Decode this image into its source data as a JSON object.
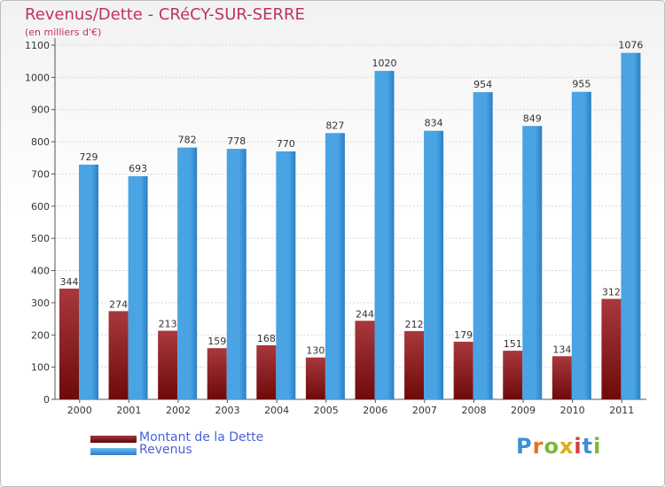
{
  "title": "Revenus/Dette - CRéCY-SUR-SERRE",
  "subtitle": "(en milliers d'€)",
  "colors": {
    "dette": "#6e0a0a",
    "dette_light": "#a8383d",
    "revenus": "#4aa3e2",
    "revenus_dark": "#2a7fc6",
    "grid": "#d8d8d8",
    "text": "#333333",
    "accent": "#c0335f",
    "legend_text": "#4a62d8"
  },
  "chart_data": {
    "type": "bar",
    "title": "Revenus/Dette - CRéCY-SUR-SERRE",
    "xlabel": "",
    "ylabel": "(en milliers d'€)",
    "ylim": [
      0,
      1100
    ],
    "yticks": [
      0,
      100,
      200,
      300,
      400,
      500,
      600,
      700,
      800,
      900,
      1000,
      1100
    ],
    "grid": true,
    "categories": [
      "2000",
      "2001",
      "2002",
      "2003",
      "2004",
      "2005",
      "2006",
      "2007",
      "2008",
      "2009",
      "2010",
      "2011"
    ],
    "series": [
      {
        "name": "Montant de la Dette",
        "values": [
          344,
          274,
          213,
          159,
          168,
          130,
          244,
          212,
          179,
          151,
          134,
          312
        ]
      },
      {
        "name": "Revenus",
        "values": [
          729,
          693,
          782,
          778,
          770,
          827,
          1020,
          834,
          954,
          849,
          955,
          1076
        ]
      }
    ],
    "legend_position": "bottom-left"
  },
  "legend": {
    "items": [
      {
        "label": "Montant de la Dette"
      },
      {
        "label": "Revenus"
      }
    ]
  },
  "logo": {
    "text": "Proxiti",
    "letters": [
      "P",
      "r",
      "o",
      "x",
      "i",
      "t",
      "i"
    ],
    "colors": [
      "#3e8fd8",
      "#e8731c",
      "#7cb83a",
      "#e0a81c",
      "#d23c3c",
      "#3e8fd8",
      "#7cb83a"
    ]
  }
}
